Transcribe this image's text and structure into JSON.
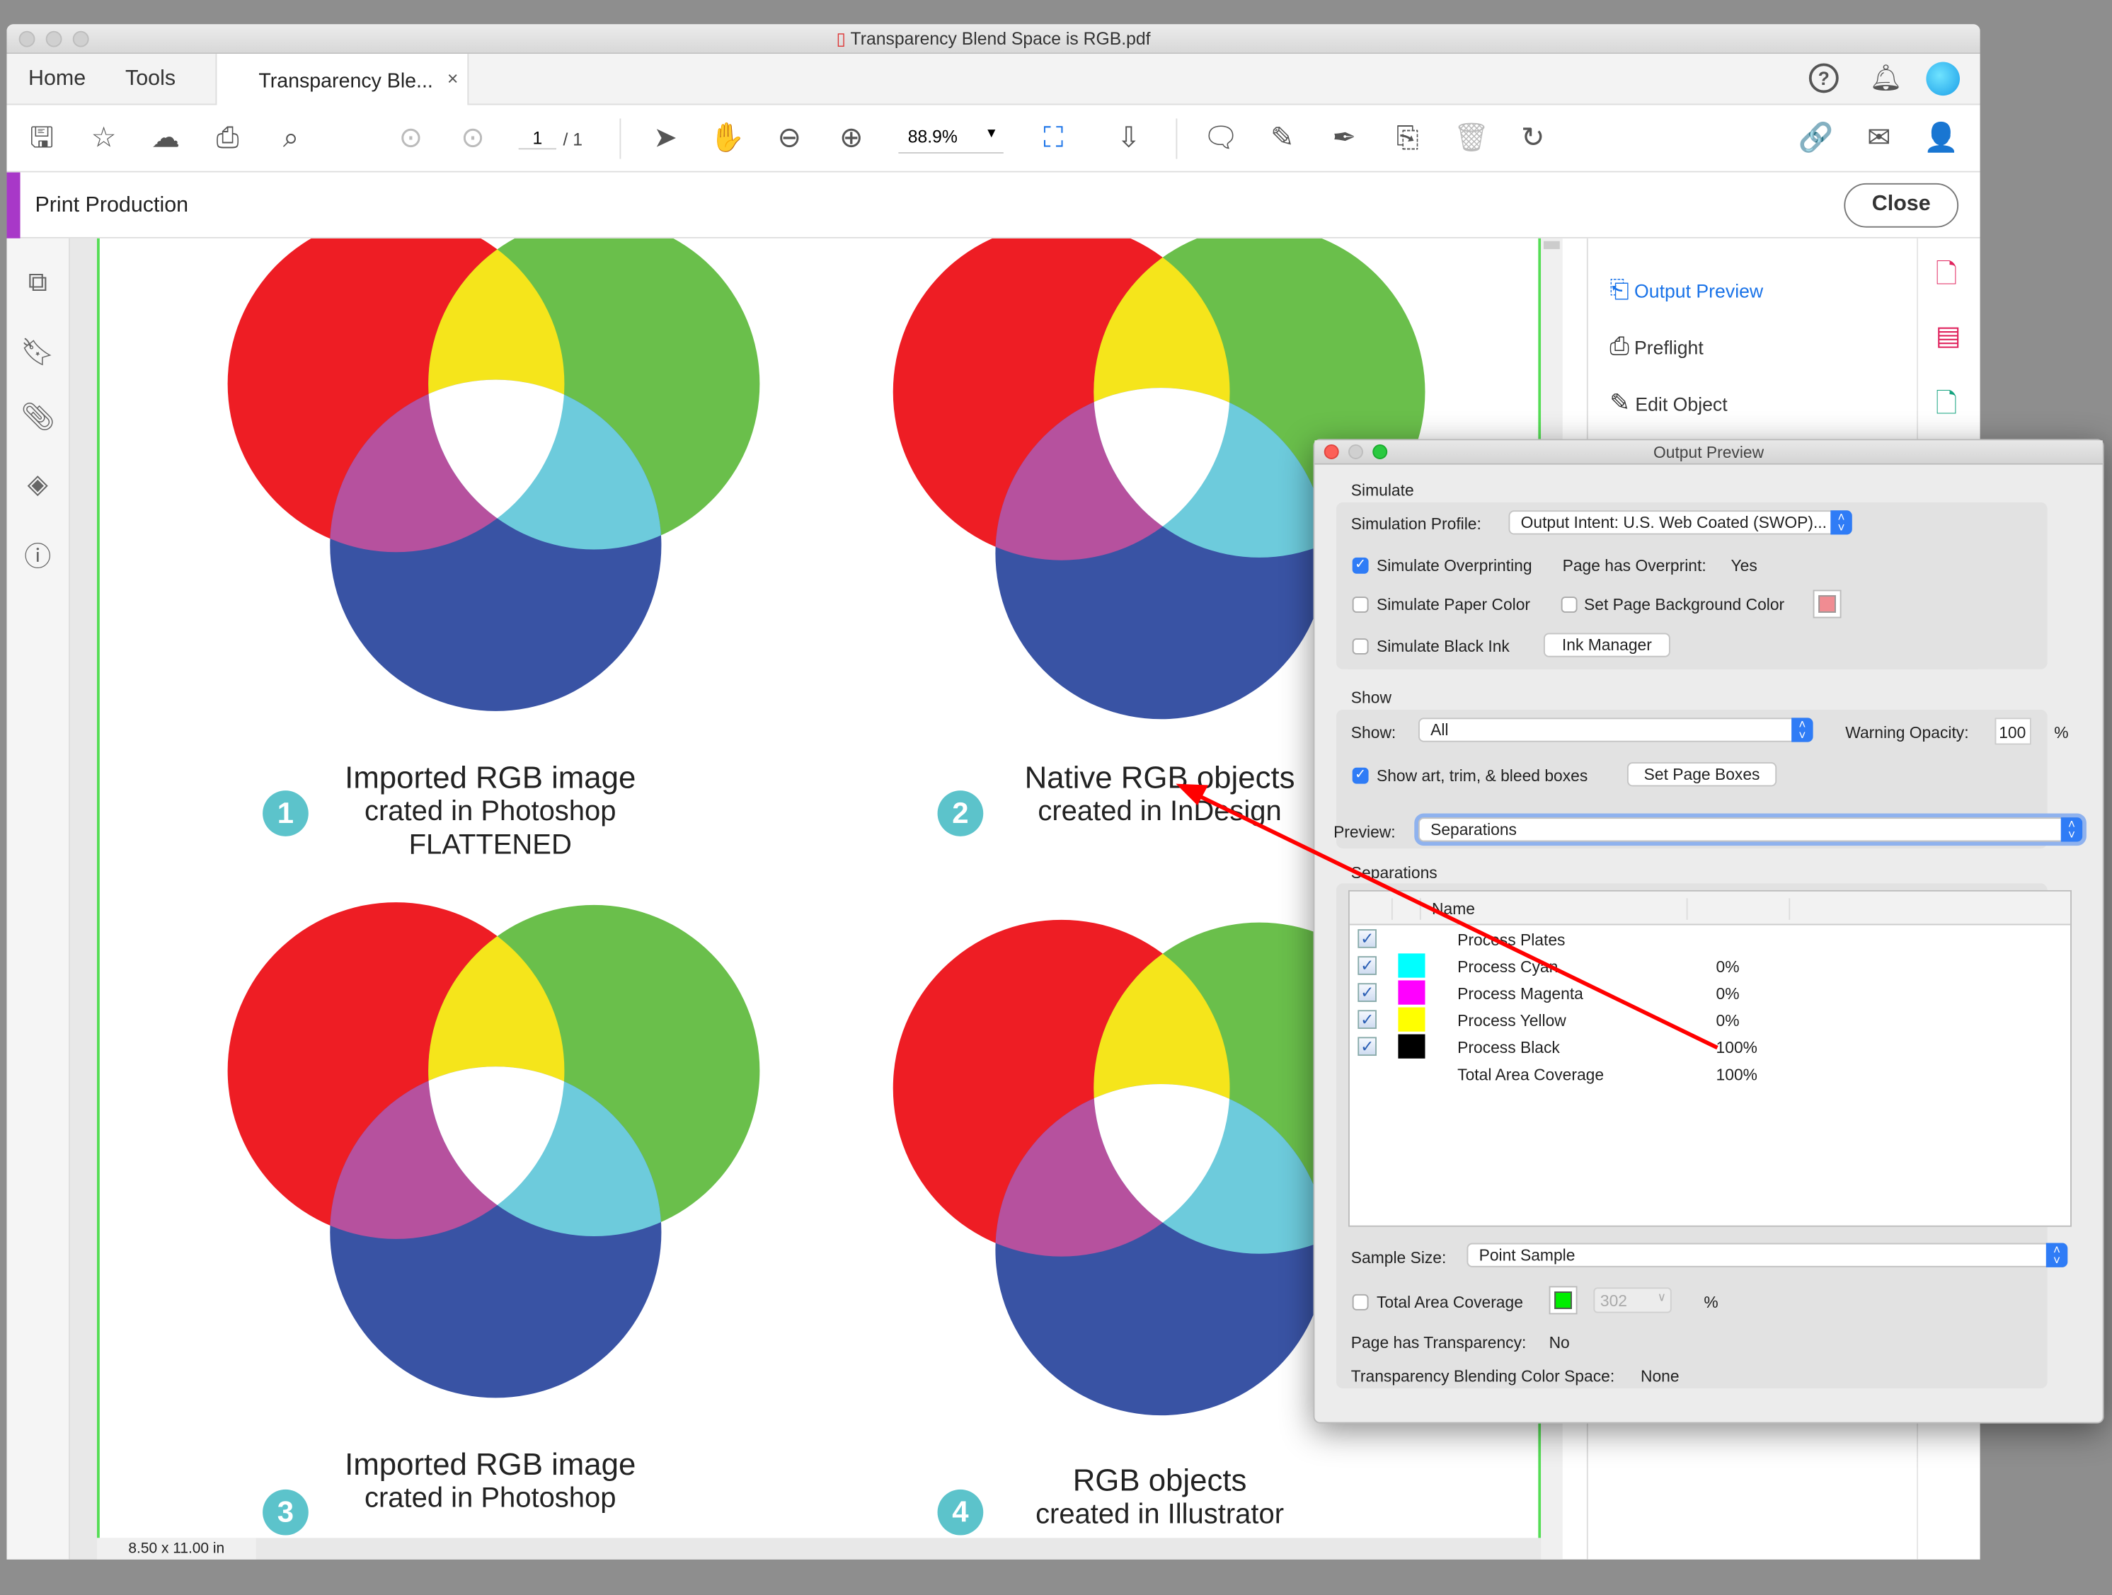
{
  "window": {
    "title": "Transparency Blend Space is RGB.pdf"
  },
  "tabs": {
    "home": "Home",
    "tools": "Tools",
    "document": "Transparency Ble...",
    "close_glyph": "×"
  },
  "toolbar": {
    "page_current": "1",
    "page_total": "/ 1",
    "zoom": "88.9%"
  },
  "print_production": {
    "title": "Print Production",
    "close_label": "Close",
    "accent": "#a838c8"
  },
  "document": {
    "size": "8.50 x 11.00 in",
    "colors": {
      "red": "#ee1d24",
      "green": "#6abf4b",
      "blue": "#3953a4",
      "yellow": "#f5e51b",
      "magenta": "#b6519e",
      "cyan": "#6dcbdc"
    },
    "panels": [
      {
        "number": "1",
        "line1": "Imported RGB image",
        "line2": "crated in Photoshop",
        "line3": "FLATTENED"
      },
      {
        "number": "2",
        "line1": "Native RGB objects",
        "line2": "created in InDesign",
        "line3": ""
      },
      {
        "number": "3",
        "line1": "Imported RGB image",
        "line2": "crated in Photoshop",
        "line3": ""
      },
      {
        "number": "4",
        "line1": "RGB objects",
        "line2": "created in Illustrator",
        "line3": ""
      }
    ]
  },
  "right_panel": {
    "items": [
      {
        "label": "Output Preview",
        "active": true
      },
      {
        "label": "Preflight"
      },
      {
        "label": "Edit Object"
      }
    ]
  },
  "dialog": {
    "title": "Output Preview",
    "simulate": {
      "heading": "Simulate",
      "profile_label": "Simulation Profile:",
      "profile_value": "Output Intent: U.S. Web Coated (SWOP)...",
      "overprinting": "Simulate Overprinting",
      "overprinting_checked": true,
      "overprint_label": "Page has Overprint:",
      "overprint_value": "Yes",
      "paper_color": "Simulate Paper Color",
      "page_bg": "Set Page Background Color",
      "page_bg_color": "#f08c92",
      "black_ink": "Simulate Black Ink",
      "ink_manager": "Ink Manager"
    },
    "show": {
      "heading": "Show",
      "show_label": "Show:",
      "show_value": "All",
      "warning_label": "Warning Opacity:",
      "warning_value": "100",
      "percent": "%",
      "boxes": "Show art, trim, & bleed boxes",
      "boxes_checked": true,
      "set_page_boxes": "Set Page Boxes"
    },
    "preview": {
      "label": "Preview:",
      "value": "Separations"
    },
    "separations": {
      "heading": "Separations",
      "col_name": "Name",
      "rows": [
        {
          "name": "Process Plates",
          "value": "",
          "color": "",
          "checked": true
        },
        {
          "name": "Process Cyan",
          "value": "0%",
          "color": "#00ffff",
          "checked": true
        },
        {
          "name": "Process Magenta",
          "value": "0%",
          "color": "#ff00ff",
          "checked": true
        },
        {
          "name": "Process Yellow",
          "value": "0%",
          "color": "#ffff00",
          "checked": true
        },
        {
          "name": "Process Black",
          "value": "100%",
          "color": "#000000",
          "checked": true
        },
        {
          "name": "Total Area Coverage",
          "value": "100%",
          "color": "",
          "checked": null
        }
      ]
    },
    "sample_label": "Sample Size:",
    "sample_value": "Point Sample",
    "tac_label": "Total Area Coverage",
    "tac_color": "#00ee00",
    "tac_value": "302",
    "tac_percent": "%",
    "transparency_label": "Page has Transparency:",
    "transparency_value": "No",
    "blend_label": "Transparency Blending Color Space:",
    "blend_value": "None"
  },
  "annotation": {
    "arrow_color": "#ff0000"
  }
}
